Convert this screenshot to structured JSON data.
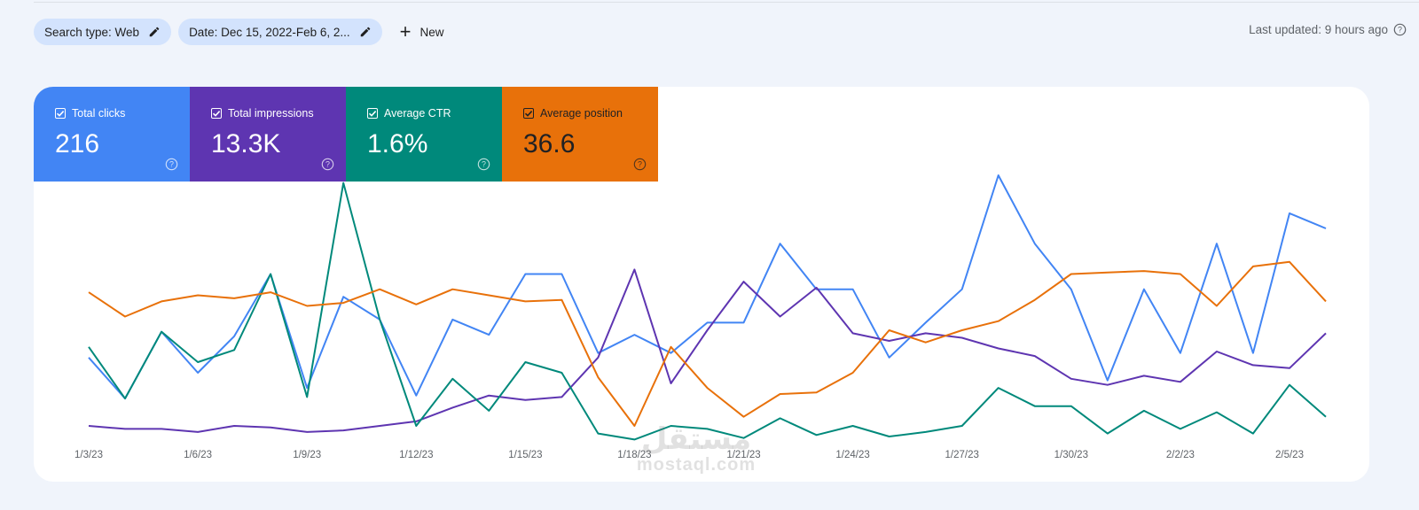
{
  "filters": {
    "search_type": "Search type: Web",
    "date": "Date: Dec 15, 2022-Feb 6, 2...",
    "new_label": "New"
  },
  "last_updated": "Last updated: 9 hours ago",
  "metrics": [
    {
      "label": "Total clicks",
      "value": "216",
      "color": "#4285f4"
    },
    {
      "label": "Total impressions",
      "value": "13.3K",
      "color": "#5e35b1"
    },
    {
      "label": "Average CTR",
      "value": "1.6%",
      "color": "#00897b"
    },
    {
      "label": "Average position",
      "value": "36.6",
      "color": "#e8710a"
    }
  ],
  "watermark": {
    "arabic": "مستقل",
    "latin": "mostaql.com"
  },
  "chart_data": {
    "type": "line",
    "x_tick_labels": [
      "1/3/23",
      "1/6/23",
      "1/9/23",
      "1/12/23",
      "1/15/23",
      "1/18/23",
      "1/21/23",
      "1/24/23",
      "1/27/23",
      "1/30/23",
      "2/2/23",
      "2/5/23"
    ],
    "x_start": "1/3/23",
    "x_end": "2/5/23",
    "axes_labels_visible": false,
    "grid": false,
    "series": [
      {
        "name": "Total clicks",
        "color": "#4285f4",
        "values": [
          0.45,
          0.18,
          0.62,
          0.35,
          0.59,
          1.0,
          0.25,
          0.85,
          0.7,
          0.2,
          0.7,
          0.6,
          1.0,
          1.0,
          0.48,
          0.6,
          0.48,
          0.68,
          0.68,
          1.2,
          0.9,
          0.9,
          0.45,
          0.68,
          0.9,
          1.65,
          1.2,
          0.9,
          0.3,
          0.9,
          0.48,
          1.2,
          0.48,
          1.4,
          1.3
        ]
      },
      {
        "name": "Total impressions",
        "color": "#5e35b1",
        "values": [
          0.0,
          -0.02,
          -0.02,
          -0.04,
          0.0,
          -0.01,
          -0.04,
          -0.03,
          0.0,
          0.03,
          0.12,
          0.2,
          0.17,
          0.19,
          0.45,
          1.03,
          0.28,
          0.63,
          0.95,
          0.72,
          0.91,
          0.61,
          0.56,
          0.61,
          0.58,
          0.51,
          0.46,
          0.31,
          0.27,
          0.33,
          0.29,
          0.49,
          0.4,
          0.38,
          0.61
        ]
      },
      {
        "name": "Average CTR",
        "color": "#00897b",
        "values": [
          0.52,
          0.18,
          0.62,
          0.42,
          0.5,
          1.0,
          0.19,
          1.6,
          0.7,
          0.0,
          0.31,
          0.1,
          0.42,
          0.35,
          -0.05,
          -0.09,
          0.0,
          -0.02,
          -0.08,
          0.05,
          -0.06,
          0.0,
          -0.07,
          -0.04,
          0.0,
          0.25,
          0.13,
          0.13,
          -0.05,
          0.1,
          -0.02,
          0.09,
          -0.05,
          0.27,
          0.06
        ]
      },
      {
        "name": "Average position",
        "color": "#e8710a",
        "values": [
          0.88,
          0.72,
          0.82,
          0.86,
          0.84,
          0.88,
          0.79,
          0.81,
          0.9,
          0.8,
          0.9,
          0.86,
          0.82,
          0.83,
          0.32,
          0.0,
          0.52,
          0.25,
          0.06,
          0.21,
          0.22,
          0.35,
          0.63,
          0.55,
          0.63,
          0.69,
          0.83,
          1.0,
          1.01,
          1.02,
          1.0,
          0.79,
          1.05,
          1.08,
          0.82
        ]
      }
    ]
  }
}
